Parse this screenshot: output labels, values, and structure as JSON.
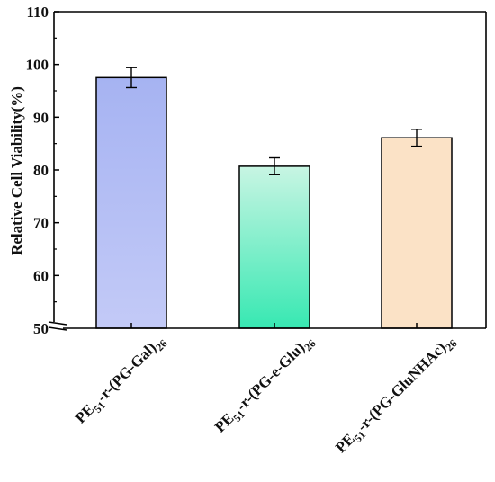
{
  "chart_data": {
    "type": "bar",
    "ylabel": "Relative Cell Viability(%)",
    "ylim": [
      50,
      110
    ],
    "yticks": [
      "50",
      "60",
      "70",
      "80",
      "90",
      "100",
      "110"
    ],
    "axis_break": true,
    "categories": [
      {
        "prefix": "PE",
        "sub1": "51",
        "middle": "-r-(PG-Gal)",
        "sub2": "26"
      },
      {
        "prefix": "PE",
        "sub1": "51",
        "middle": "-r-(PG-e-Glu)",
        "sub2": "26"
      },
      {
        "prefix": "PE",
        "sub1": "51",
        "middle": "-r-(PG-GluNHAc)",
        "sub2": "26"
      }
    ],
    "values": [
      97.5,
      80.7,
      86.1
    ],
    "errors": [
      1.9,
      1.6,
      1.6
    ],
    "colors": [
      {
        "top": "#a6b3f2",
        "bottom": "#c3caf7"
      },
      {
        "top": "#c8f5e3",
        "bottom": "#37e8b2"
      },
      {
        "top": "#fbe2c6",
        "bottom": "#fbe2c6"
      }
    ]
  }
}
